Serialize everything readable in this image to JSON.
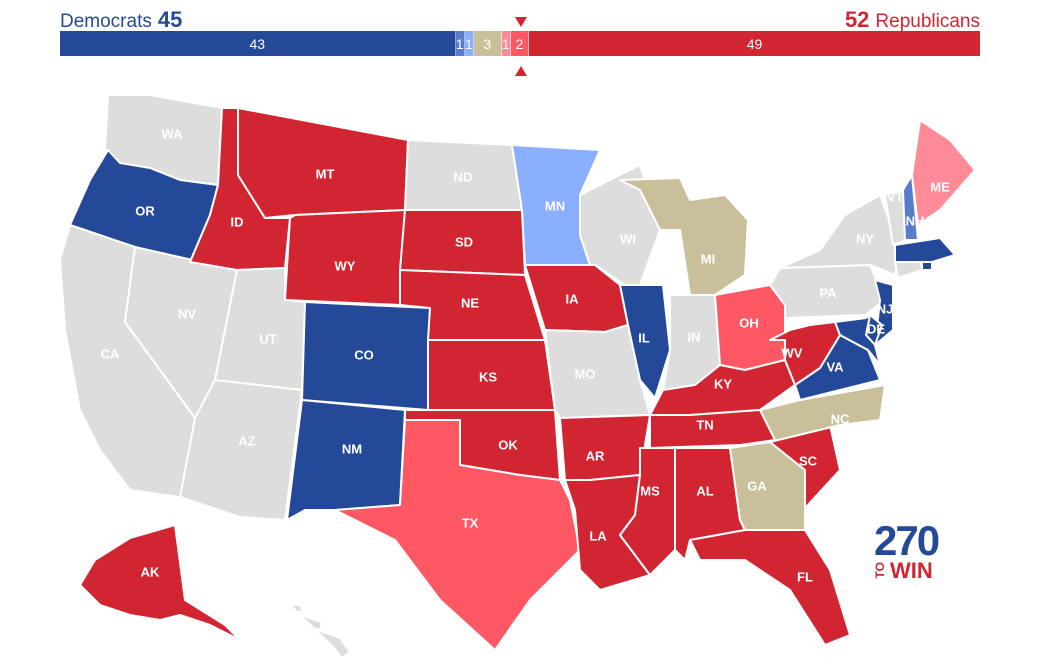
{
  "header": {
    "dem_label": "Democrats",
    "dem_count": "45",
    "rep_count": "52",
    "rep_label": "Republicans"
  },
  "colors": {
    "safe_dem": "#244999",
    "likely_dem": "#577ccc",
    "leans_dem": "#8aafff",
    "tossup": "#c9c09b",
    "leans_rep": "#ff8b98",
    "likely_rep": "#ff5865",
    "safe_rep": "#d22532",
    "no_race": "#dddddd"
  },
  "bar": [
    {
      "label": "43",
      "value": 43,
      "color": "#244999"
    },
    {
      "label": "1",
      "value": 1,
      "color": "#577ccc"
    },
    {
      "label": "1",
      "value": 1,
      "color": "#8aafff"
    },
    {
      "label": "3",
      "value": 3,
      "color": "#c9c09b"
    },
    {
      "label": "1",
      "value": 1,
      "color": "#ff8b98"
    },
    {
      "label": "2",
      "value": 2,
      "color": "#ff5865"
    },
    {
      "label": "49",
      "value": 49,
      "color": "#d22532"
    }
  ],
  "states": [
    {
      "abbr": "WA",
      "rating": "no_race"
    },
    {
      "abbr": "OR",
      "rating": "safe_dem"
    },
    {
      "abbr": "CA",
      "rating": "no_race"
    },
    {
      "abbr": "NV",
      "rating": "no_race"
    },
    {
      "abbr": "ID",
      "rating": "safe_rep"
    },
    {
      "abbr": "MT",
      "rating": "safe_rep"
    },
    {
      "abbr": "WY",
      "rating": "safe_rep"
    },
    {
      "abbr": "UT",
      "rating": "no_race"
    },
    {
      "abbr": "AZ",
      "rating": "no_race"
    },
    {
      "abbr": "CO",
      "rating": "safe_dem"
    },
    {
      "abbr": "NM",
      "rating": "safe_dem"
    },
    {
      "abbr": "ND",
      "rating": "no_race"
    },
    {
      "abbr": "SD",
      "rating": "safe_rep"
    },
    {
      "abbr": "NE",
      "rating": "safe_rep"
    },
    {
      "abbr": "KS",
      "rating": "safe_rep"
    },
    {
      "abbr": "OK",
      "rating": "safe_rep"
    },
    {
      "abbr": "TX",
      "rating": "likely_rep"
    },
    {
      "abbr": "MN",
      "rating": "leans_dem"
    },
    {
      "abbr": "IA",
      "rating": "safe_rep"
    },
    {
      "abbr": "MO",
      "rating": "no_race"
    },
    {
      "abbr": "AR",
      "rating": "safe_rep"
    },
    {
      "abbr": "LA",
      "rating": "safe_rep"
    },
    {
      "abbr": "WI",
      "rating": "no_race"
    },
    {
      "abbr": "IL",
      "rating": "safe_dem"
    },
    {
      "abbr": "MI",
      "rating": "tossup"
    },
    {
      "abbr": "IN",
      "rating": "no_race"
    },
    {
      "abbr": "OH",
      "rating": "likely_rep"
    },
    {
      "abbr": "KY",
      "rating": "safe_rep"
    },
    {
      "abbr": "TN",
      "rating": "safe_rep"
    },
    {
      "abbr": "MS",
      "rating": "safe_rep"
    },
    {
      "abbr": "AL",
      "rating": "safe_rep"
    },
    {
      "abbr": "GA",
      "rating": "tossup"
    },
    {
      "abbr": "FL",
      "rating": "safe_rep"
    },
    {
      "abbr": "SC",
      "rating": "safe_rep"
    },
    {
      "abbr": "NC",
      "rating": "tossup"
    },
    {
      "abbr": "VA",
      "rating": "safe_dem"
    },
    {
      "abbr": "WV",
      "rating": "safe_rep"
    },
    {
      "abbr": "PA",
      "rating": "no_race"
    },
    {
      "abbr": "NY",
      "rating": "no_race"
    },
    {
      "abbr": "NJ",
      "rating": "safe_dem"
    },
    {
      "abbr": "DE",
      "rating": "safe_dem"
    },
    {
      "abbr": "MD",
      "rating": "safe_dem"
    },
    {
      "abbr": "CT",
      "rating": "no_race"
    },
    {
      "abbr": "RI",
      "rating": "safe_dem"
    },
    {
      "abbr": "MA",
      "rating": "safe_dem"
    },
    {
      "abbr": "VT",
      "rating": "no_race"
    },
    {
      "abbr": "NH",
      "rating": "likely_dem"
    },
    {
      "abbr": "ME",
      "rating": "leans_rep"
    },
    {
      "abbr": "AK",
      "rating": "safe_rep"
    },
    {
      "abbr": "HI",
      "rating": "no_race"
    }
  ],
  "logo": {
    "main": "270",
    "small": "TO",
    "word": "WIN"
  }
}
